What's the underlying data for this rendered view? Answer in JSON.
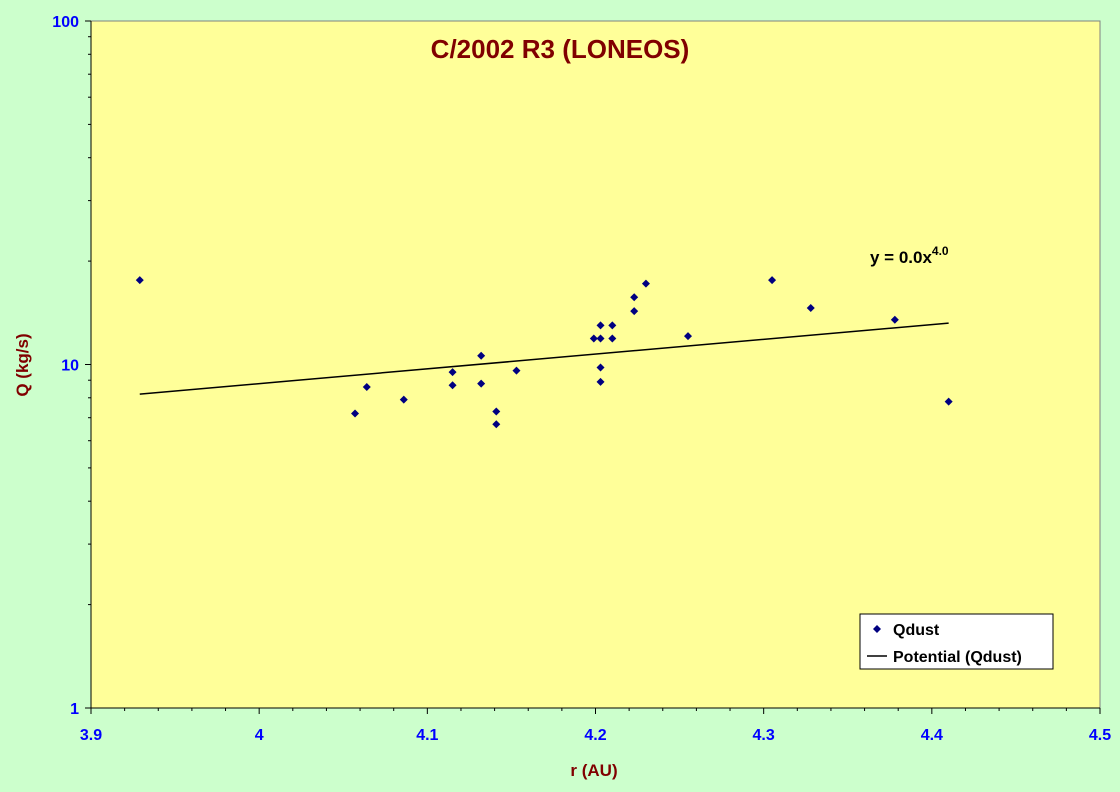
{
  "chart_data": {
    "type": "scatter",
    "title": "C/2002 R3 (LONEOS)",
    "xlabel": "r (AU)",
    "ylabel": "Q (kg/s)",
    "xlim": [
      3.9,
      4.5
    ],
    "ylim": [
      1,
      100
    ],
    "yscale": "log",
    "grid": false,
    "x_ticks": [
      "3.9",
      "4",
      "4.1",
      "4.2",
      "4.3",
      "4.4",
      "4.5"
    ],
    "y_ticks": [
      "1",
      "10",
      "100"
    ],
    "series": [
      {
        "name": "Qdust",
        "marker": "diamond",
        "color": "#000080",
        "points": [
          {
            "x": 3.929,
            "y": 17.6
          },
          {
            "x": 4.057,
            "y": 7.2
          },
          {
            "x": 4.064,
            "y": 8.6
          },
          {
            "x": 4.086,
            "y": 7.9
          },
          {
            "x": 4.115,
            "y": 8.7
          },
          {
            "x": 4.115,
            "y": 9.5
          },
          {
            "x": 4.132,
            "y": 8.8
          },
          {
            "x": 4.132,
            "y": 10.6
          },
          {
            "x": 4.141,
            "y": 7.3
          },
          {
            "x": 4.141,
            "y": 6.7
          },
          {
            "x": 4.153,
            "y": 9.6
          },
          {
            "x": 4.199,
            "y": 11.9
          },
          {
            "x": 4.203,
            "y": 11.9
          },
          {
            "x": 4.203,
            "y": 13.0
          },
          {
            "x": 4.203,
            "y": 9.8
          },
          {
            "x": 4.203,
            "y": 8.9
          },
          {
            "x": 4.21,
            "y": 11.9
          },
          {
            "x": 4.21,
            "y": 13.0
          },
          {
            "x": 4.223,
            "y": 14.3
          },
          {
            "x": 4.223,
            "y": 15.7
          },
          {
            "x": 4.23,
            "y": 17.2
          },
          {
            "x": 4.255,
            "y": 12.1
          },
          {
            "x": 4.305,
            "y": 17.6
          },
          {
            "x": 4.328,
            "y": 14.6
          },
          {
            "x": 4.378,
            "y": 13.5
          },
          {
            "x": 4.41,
            "y": 7.8
          }
        ]
      },
      {
        "name": "Potential (Qdust)",
        "type": "line",
        "color": "#000000",
        "fit": "power",
        "points": [
          {
            "x": 3.929,
            "y": 8.2
          },
          {
            "x": 4.41,
            "y": 13.2
          }
        ]
      }
    ],
    "annotation": {
      "base": "y = 0.0x",
      "exp": "4.0"
    },
    "legend": {
      "position": "bottom-right",
      "entries": [
        "Qdust",
        "Potential (Qdust)"
      ]
    },
    "colors": {
      "page_bg": "#ccffcc",
      "plot_bg": "#ffff99",
      "title": "#800000",
      "axis_title": "#800000",
      "tick_label": "#0000ff",
      "marker": "#000080",
      "fit_line": "#000000"
    }
  }
}
